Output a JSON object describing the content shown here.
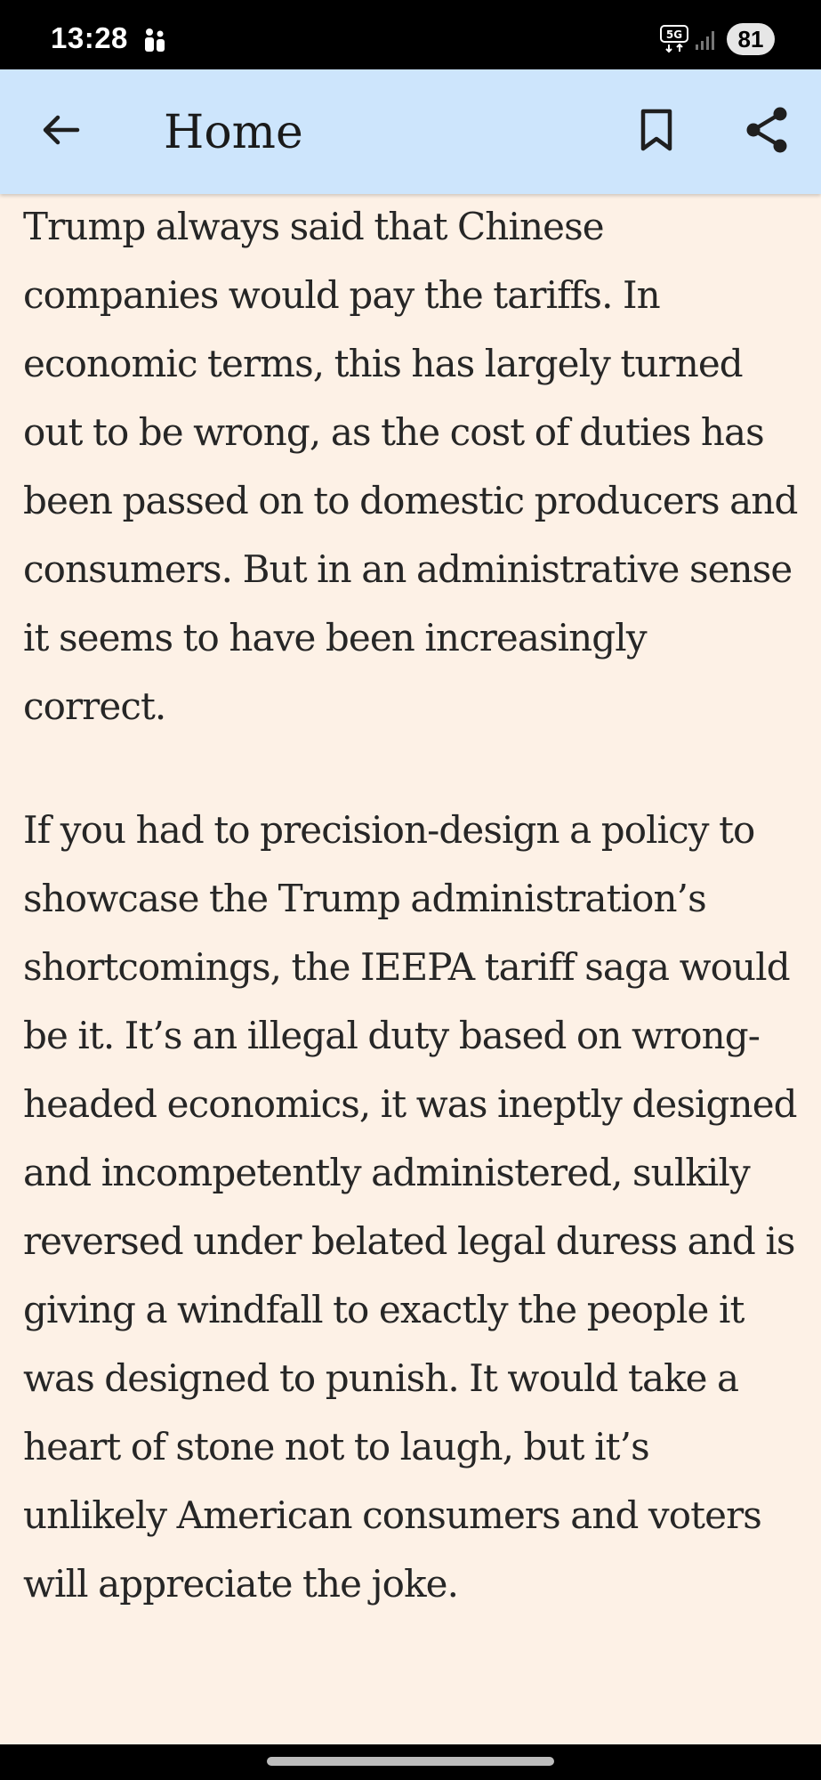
{
  "status_bar": {
    "time": "13:28",
    "network": "5G",
    "battery": "81"
  },
  "app_bar": {
    "title": "Home",
    "back_icon": "arrow-left-icon",
    "bookmark_icon": "bookmark-icon",
    "share_icon": "share-icon"
  },
  "article": {
    "paragraphs": [
      "Trump always said that Chinese companies would pay the tariffs. In economic terms, this has largely turned out to be wrong, as the cost of duties has been passed on to domestic producers and consumers. But in an administrative sense it seems to have been increasingly correct.",
      "If you had to precision-design a policy to showcase the Trump administration’s shortcomings, the IEEPA tariff saga would be it. It’s an illegal duty based on wrong-headed economics, it was ineptly designed and incompetently administered, sulkily reversed under belated legal duress and is giving a windfall to exactly the people it was designed to punish. It would take a heart of stone not to laugh, but it’s unlikely American consumers and voters will appreciate the joke."
    ]
  },
  "colors": {
    "app_bar_background": "#CDE5FC",
    "page_background": "#FDF1E6",
    "text": "#262626"
  }
}
